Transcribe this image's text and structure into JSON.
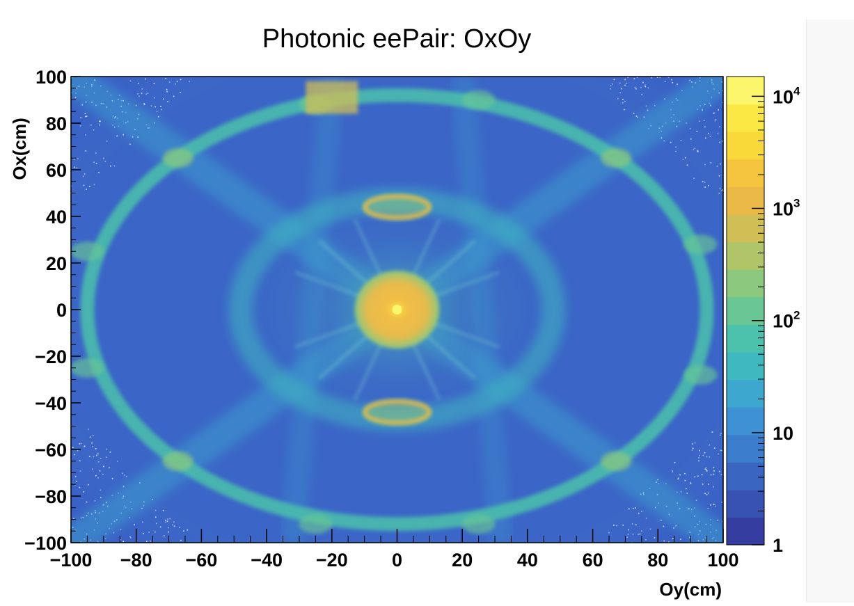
{
  "chart_data": {
    "type": "heatmap",
    "title": "Photonic eePair: OxOy",
    "xlabel": "Oy(cm)",
    "ylabel": "Ox(cm)",
    "xlim": [
      -100,
      100
    ],
    "ylim": [
      -100,
      100
    ],
    "x_ticks": [
      -100,
      -80,
      -60,
      -40,
      -20,
      0,
      20,
      40,
      60,
      80,
      100
    ],
    "y_ticks": [
      -100,
      -80,
      -60,
      -40,
      -20,
      0,
      20,
      40,
      60,
      80,
      100
    ],
    "x_tick_labels": [
      "−100",
      "−80",
      "−60",
      "−40",
      "−20",
      "0",
      "20",
      "40",
      "60",
      "80",
      "100"
    ],
    "y_tick_labels": [
      "−100",
      "−80",
      "−60",
      "−40",
      "−20",
      "0",
      "20",
      "40",
      "60",
      "80",
      "100"
    ],
    "colorbar": {
      "scale": "log",
      "range": [
        1,
        15000
      ],
      "ticks": [
        1,
        10,
        100,
        1000,
        10000
      ],
      "tick_labels": [
        {
          "base": "1",
          "exp": ""
        },
        {
          "base": "10",
          "exp": ""
        },
        {
          "base": "10",
          "exp": "2"
        },
        {
          "base": "10",
          "exp": "3"
        },
        {
          "base": "10",
          "exp": "4"
        }
      ],
      "palette": [
        "#353ea0",
        "#3752b0",
        "#3a66c2",
        "#3c7ccd",
        "#3e92d3",
        "#3ea7cf",
        "#3fb8c0",
        "#4cc1ab",
        "#69c695",
        "#8cc87e",
        "#b0c568",
        "#d0bf55",
        "#eab948",
        "#f5c43f",
        "#f9d83a",
        "#fbe844",
        "#fbf66c"
      ]
    },
    "features": [
      {
        "name": "outer ring",
        "shape": "ellipse",
        "center": [
          0,
          0
        ],
        "radius_y": 95,
        "radius_x": 92,
        "level": 60
      },
      {
        "name": "inner ring",
        "shape": "ellipse",
        "center": [
          0,
          0
        ],
        "radius_y": 48,
        "radius_x": 47,
        "level": 30
      },
      {
        "name": "central core",
        "shape": "disc",
        "center": [
          0,
          0
        ],
        "radius": 13,
        "level": 2000
      },
      {
        "name": "upper arc",
        "center_y": 0,
        "center_x": 44,
        "level": 1000
      },
      {
        "name": "lower arc",
        "center_y": 0,
        "center_x": -44,
        "level": 1000
      },
      {
        "name": "diagonal beams",
        "directions": [
          "NE",
          "NW",
          "SE",
          "SW"
        ],
        "level": 20
      }
    ]
  }
}
